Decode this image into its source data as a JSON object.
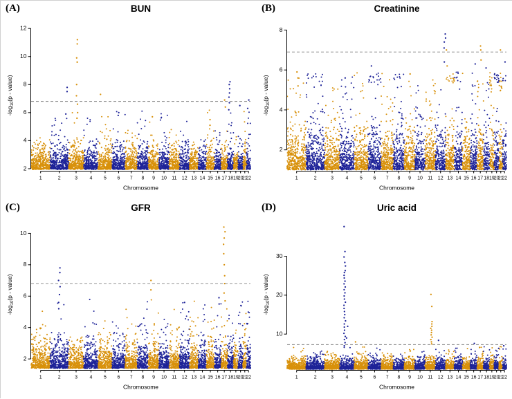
{
  "figure": {
    "background": "#ffffff",
    "colors": {
      "odd_chrom": "#D8910B",
      "even_chrom": "#1E2398",
      "significance_line": "#7F7F7F",
      "text": "#000000"
    },
    "chrom_labels": [
      "1",
      "2",
      "3",
      "4",
      "5",
      "6",
      "7",
      "8",
      "9",
      "10",
      "11",
      "12",
      "13",
      "14",
      "15",
      "16",
      "17",
      "18",
      "19",
      "20",
      "21",
      "22"
    ],
    "chrom_proportions": [
      248,
      242,
      198,
      190,
      182,
      171,
      159,
      145,
      138,
      134,
      135,
      133,
      114,
      107,
      102,
      90,
      83,
      80,
      59,
      64,
      47,
      51
    ]
  },
  "chart_data": [
    {
      "type": "scatter",
      "subtype": "manhattan",
      "panel_label": "(A)",
      "title": "BUN",
      "xlabel": "Chromosome",
      "ylabel": "-log10(p-value)",
      "ylim": [
        1.85,
        12.6
      ],
      "y_ticks": [
        2,
        4,
        6,
        8,
        10,
        12
      ],
      "significance_threshold": 6.8,
      "baseline": {
        "ymin": 1.95,
        "decay": 0.55,
        "max": 4.7
      },
      "outliers": {
        "per_chrom": 6,
        "max": 6.2
      },
      "points_density": 1.6,
      "peaks": [
        {
          "chr": 2,
          "pos": 0.88,
          "values": [
            7.8,
            7.5,
            5.9
          ]
        },
        {
          "chr": 3,
          "pos": 0.55,
          "values": [
            11.2,
            10.9,
            9.9,
            9.6,
            8.0,
            7.2,
            6.6,
            6.0,
            5.6
          ]
        },
        {
          "chr": 5,
          "pos": 0.2,
          "values": [
            7.3
          ]
        },
        {
          "chr": 6,
          "pos": 0.5,
          "values": [
            6.0,
            5.8
          ]
        },
        {
          "chr": 9,
          "pos": 0.4,
          "values": [
            5.7
          ]
        },
        {
          "chr": 15,
          "pos": 0.5,
          "values": [
            5.5,
            5.1
          ]
        },
        {
          "chr": 17,
          "pos": 0.6,
          "values": [
            6.9,
            6.4
          ]
        },
        {
          "chr": 18,
          "pos": 0.3,
          "values": [
            8.2,
            8.0,
            7.7,
            7.4,
            7.1,
            6.7,
            6.2
          ]
        },
        {
          "chr": 20,
          "pos": 0.5,
          "values": [
            6.5
          ]
        },
        {
          "chr": 22,
          "pos": 0.5,
          "values": [
            6.9,
            6.3
          ]
        }
      ]
    },
    {
      "type": "scatter",
      "subtype": "manhattan",
      "panel_label": "(B)",
      "title": "Creatinine",
      "xlabel": "Chromosome",
      "ylabel": "-log10(p-value)",
      "ylim": [
        0.95,
        8.5
      ],
      "y_ticks": [
        2,
        4,
        6,
        8
      ],
      "significance_threshold": 6.9,
      "baseline": {
        "ymin": 1.0,
        "decay": 0.7,
        "max": 4.8
      },
      "outliers": {
        "per_chrom": 14,
        "max": 5.9
      },
      "points_density": 1.6,
      "peaks": [
        {
          "chr": 1,
          "pos": 0.55,
          "values": [
            5.9,
            5.6,
            5.2
          ]
        },
        {
          "chr": 4,
          "pos": 0.4,
          "values": [
            5.6
          ]
        },
        {
          "chr": 6,
          "pos": 0.3,
          "values": [
            6.2
          ]
        },
        {
          "chr": 9,
          "pos": 0.5,
          "values": [
            5.8
          ]
        },
        {
          "chr": 12,
          "pos": 0.92,
          "values": [
            7.8,
            7.6,
            7.4,
            7.1,
            6.4
          ]
        },
        {
          "chr": 13,
          "pos": 0.15,
          "values": [
            7.0,
            6.2
          ]
        },
        {
          "chr": 16,
          "pos": 0.6,
          "values": [
            6.3
          ]
        },
        {
          "chr": 17,
          "pos": 0.55,
          "values": [
            7.2,
            7.0,
            6.5
          ]
        },
        {
          "chr": 18,
          "pos": 0.4,
          "values": [
            6.1
          ]
        },
        {
          "chr": 21,
          "pos": 0.5,
          "values": [
            7.0
          ]
        },
        {
          "chr": 22,
          "pos": 0.5,
          "values": [
            6.4
          ]
        }
      ]
    },
    {
      "type": "scatter",
      "subtype": "manhattan",
      "panel_label": "(C)",
      "title": "GFR",
      "xlabel": "Chromosome",
      "ylabel": "-log10(p-value)",
      "ylim": [
        1.3,
        10.9
      ],
      "y_ticks": [
        2,
        4,
        6,
        8,
        10
      ],
      "significance_threshold": 6.8,
      "baseline": {
        "ymin": 1.4,
        "decay": 0.55,
        "max": 4.2
      },
      "outliers": {
        "per_chrom": 8,
        "max": 5.8
      },
      "points_density": 1.6,
      "peaks": [
        {
          "chr": 2,
          "pos": 0.5,
          "values": [
            7.8,
            7.5,
            7.0,
            6.6,
            6.1,
            5.6,
            5.2
          ]
        },
        {
          "chr": 9,
          "pos": 0.2,
          "values": [
            7.0,
            6.4
          ]
        },
        {
          "chr": 12,
          "pos": 0.5,
          "values": [
            5.6
          ]
        },
        {
          "chr": 16,
          "pos": 0.8,
          "values": [
            5.9,
            5.5
          ]
        },
        {
          "chr": 17,
          "pos": 0.5,
          "values": [
            10.4,
            10.1,
            9.7,
            9.3,
            8.7,
            8.0,
            7.3,
            6.8,
            6.2,
            5.7
          ]
        },
        {
          "chr": 20,
          "pos": 0.5,
          "values": [
            5.4
          ]
        }
      ]
    },
    {
      "type": "scatter",
      "subtype": "manhattan",
      "panel_label": "(D)",
      "title": "Uric acid",
      "xlabel": "Chromosome",
      "ylabel": "-log10(p-value)",
      "ylim": [
        0.8,
        39.5
      ],
      "y_ticks": [
        10,
        20,
        30
      ],
      "significance_threshold": 7.3,
      "baseline": {
        "ymin": 1.0,
        "decay": 0.9,
        "max": 5.5
      },
      "outliers": {
        "per_chrom": 5,
        "max": 6.8
      },
      "points_density": 1.6,
      "peaks": [
        {
          "chr": 4,
          "pos": 0.35,
          "values": [
            37.6,
            31.2,
            29.8,
            28.4,
            27.5,
            26.3,
            25.8,
            25.1,
            24.4,
            23.6,
            22.9,
            22.1,
            21.4,
            20.6,
            19.8,
            19.0,
            18.2,
            17.4,
            16.6,
            15.8,
            15.0,
            14.2,
            13.4,
            12.6,
            11.8,
            11.0,
            10.2,
            9.4,
            8.6,
            7.8,
            7.0
          ]
        },
        {
          "chr": 4,
          "pos": 0.5,
          "values": [
            12.0,
            9.0
          ]
        },
        {
          "chr": 5,
          "pos": 0.1,
          "values": [
            8.0
          ]
        },
        {
          "chr": 11,
          "pos": 0.6,
          "values": [
            20.2,
            17.1,
            13.2,
            12.6,
            12.0,
            11.5,
            11.0,
            10.4,
            9.8,
            9.2,
            8.6,
            8.0,
            7.5
          ]
        },
        {
          "chr": 12,
          "pos": 0.3,
          "values": [
            8.4
          ]
        },
        {
          "chr": 16,
          "pos": 0.5,
          "values": [
            7.6
          ]
        },
        {
          "chr": 22,
          "pos": 0.5,
          "values": [
            7.0
          ]
        }
      ]
    }
  ]
}
